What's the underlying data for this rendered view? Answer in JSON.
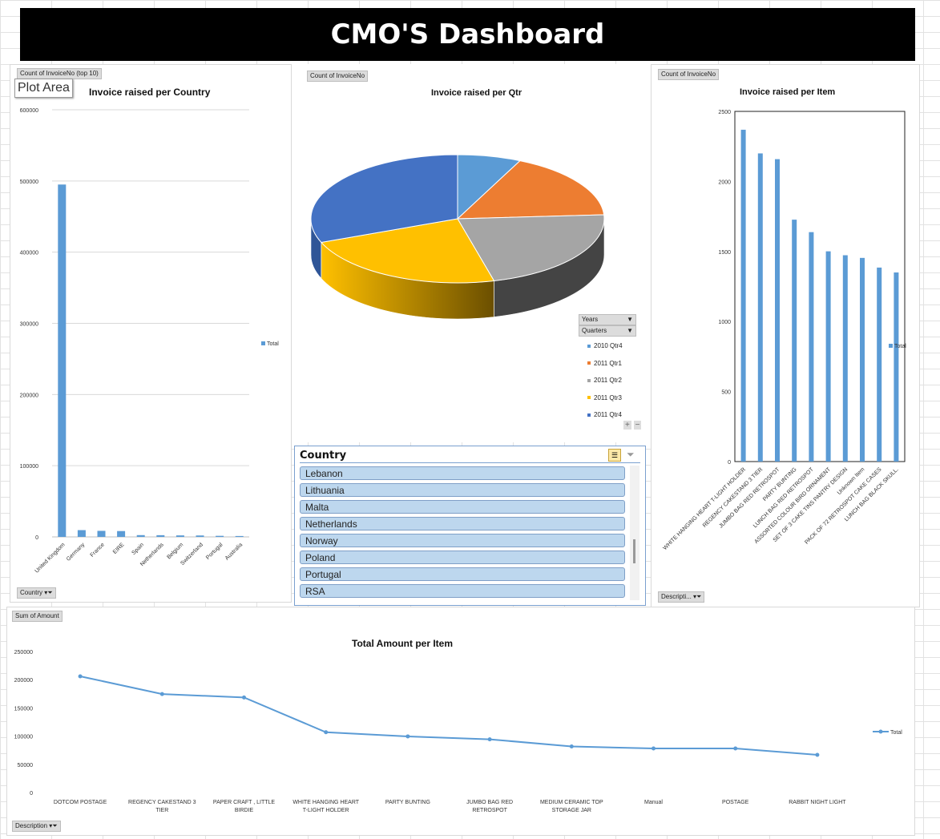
{
  "dashboard_title": "CMO'S Dashboard",
  "plot_area_tooltip": "Plot Area",
  "country_chart": {
    "field_button": "Count of InvoiceNo (top 10)",
    "axis_button": "Country",
    "legend": "Total"
  },
  "qtr_chart": {
    "field_button": "Count of InvoiceNo",
    "row_buttons": [
      "Years",
      "Quarters"
    ],
    "legend_entries": [
      "2010 Qtr4",
      "2011 Qtr1",
      "2011 Qtr2",
      "2011 Qtr3",
      "2011 Qtr4"
    ],
    "colors": [
      "#5b9bd5",
      "#ed7d31",
      "#a5a5a5",
      "#ffc000",
      "#4472c4"
    ]
  },
  "item_chart": {
    "field_button": "Count of InvoiceNo",
    "axis_button": "Descripti...",
    "legend": "Total"
  },
  "amount_chart": {
    "field_button": "Sum of Amount",
    "axis_button": "Description",
    "legend": "Total"
  },
  "slicer": {
    "title": "Country",
    "items": [
      "Lebanon",
      "Lithuania",
      "Malta",
      "Netherlands",
      "Norway",
      "Poland",
      "Portugal",
      "RSA"
    ]
  },
  "chart_data": [
    {
      "type": "bar",
      "title": "Invoice raised per Country",
      "categories": [
        "United Kingdom",
        "Germany",
        "France",
        "EIRE",
        "Spain",
        "Netherlands",
        "Belgium",
        "Switzerland",
        "Portugal",
        "Australia"
      ],
      "series": [
        {
          "name": "Total",
          "values": [
            495000,
            9500,
            8500,
            8200,
            2500,
            2400,
            2100,
            2000,
            1500,
            1250
          ]
        }
      ],
      "ylim": [
        0,
        600000
      ],
      "yticks": [
        0,
        100000,
        200000,
        300000,
        400000,
        500000,
        600000
      ],
      "grid": true,
      "legend": "right"
    },
    {
      "type": "pie",
      "title": "Invoice raised per Qtr",
      "categories": [
        "2010 Qtr4",
        "2011 Qtr1",
        "2011 Qtr2",
        "2011 Qtr3",
        "2011 Qtr4"
      ],
      "values": [
        7,
        17,
        22,
        23,
        31
      ],
      "legend": "right"
    },
    {
      "type": "bar",
      "title": "Invoice raised per Item",
      "categories": [
        "WHITE HANGING HEART T-LIGHT HOLDER",
        "REGENCY CAKESTAND 3 TIER",
        "JUMBO BAG RED RETROSPOT",
        "PARTY BUNTING",
        "LUNCH BAG RED RETROSPOT",
        "ASSORTED COLOUR BIRD ORNAMENT",
        "SET OF 3 CAKE TINS PANTRY DESIGN",
        "Unknown Item",
        "PACK OF 72 RETROSPOT CAKE CASES",
        "LUNCH BAG  BLACK SKULL."
      ],
      "series": [
        {
          "name": "Total",
          "values": [
            2369,
            2200,
            2159,
            1727,
            1638,
            1501,
            1473,
            1454,
            1385,
            1350
          ]
        }
      ],
      "ylim": [
        0,
        2500
      ],
      "yticks": [
        0,
        500,
        1000,
        1500,
        2000,
        2500
      ],
      "grid": false,
      "legend": "right"
    },
    {
      "type": "line",
      "title": "Total Amount per Item",
      "categories": [
        "DOTCOM POSTAGE",
        "REGENCY CAKESTAND 3 TIER",
        "PAPER CRAFT , LITTLE BIRDIE",
        "WHITE HANGING HEART T-LIGHT HOLDER",
        "PARTY BUNTING",
        "JUMBO BAG RED RETROSPOT",
        "MEDIUM CERAMIC TOP STORAGE JAR",
        "Manual",
        "POSTAGE",
        "RABBIT NIGHT LIGHT"
      ],
      "series": [
        {
          "name": "Total",
          "values": [
            206000,
            174500,
            168500,
            106900,
            99500,
            94300,
            81700,
            78100,
            78100,
            66800
          ]
        }
      ],
      "ylim": [
        0,
        250000
      ],
      "yticks": [
        0,
        50000,
        100000,
        150000,
        200000,
        250000
      ],
      "grid": false,
      "legend": "right"
    }
  ]
}
